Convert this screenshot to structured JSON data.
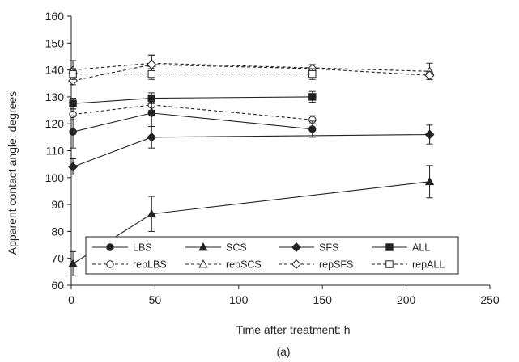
{
  "chart_data": {
    "type": "line",
    "xlabel": "Time after treatment: h",
    "ylabel": "Apparent contact angle: degrees",
    "caption": "(a)",
    "xlim": [
      0,
      250
    ],
    "ylim": [
      60,
      160
    ],
    "xticks": [
      "0",
      "50",
      "100",
      "150",
      "200",
      "250"
    ],
    "yticks": [
      "60",
      "70",
      "80",
      "90",
      "100",
      "110",
      "120",
      "130",
      "140",
      "150",
      "160"
    ],
    "grid": false,
    "legend_position": "bottom-left",
    "series": [
      {
        "name": "LBS",
        "marker": "circle",
        "fill": "filled",
        "dash": "solid",
        "x": [
          1,
          48,
          144
        ],
        "y": [
          117,
          124,
          118
        ],
        "err": [
          6,
          5,
          3
        ]
      },
      {
        "name": "SCS",
        "marker": "triangle",
        "fill": "filled",
        "dash": "solid",
        "x": [
          1,
          48,
          214
        ],
        "y": [
          68,
          86.5,
          98.5
        ],
        "err": [
          4.5,
          6.5,
          6
        ]
      },
      {
        "name": "SFS",
        "marker": "diamond",
        "fill": "filled",
        "dash": "solid",
        "x": [
          1,
          48,
          214
        ],
        "y": [
          104,
          115,
          116
        ],
        "err": [
          3,
          4,
          3.5
        ]
      },
      {
        "name": "ALL",
        "marker": "square",
        "fill": "filled",
        "dash": "solid",
        "x": [
          1,
          48,
          144
        ],
        "y": [
          127.5,
          129.5,
          130
        ],
        "err": [
          2,
          2,
          2
        ]
      },
      {
        "name": "repLBS",
        "marker": "circle",
        "fill": "open",
        "dash": "dashed",
        "x": [
          1,
          48,
          144
        ],
        "y": [
          123.5,
          127,
          121.5
        ],
        "err": [
          2,
          2,
          1.5
        ]
      },
      {
        "name": "repSCS",
        "marker": "triangle",
        "fill": "open",
        "dash": "dashed",
        "x": [
          1,
          48,
          214
        ],
        "y": [
          140,
          142.5,
          139.5
        ],
        "err": [
          3.5,
          3,
          3
        ]
      },
      {
        "name": "repSFS",
        "marker": "diamond",
        "fill": "open",
        "dash": "dashed",
        "x": [
          1,
          48,
          144,
          214
        ],
        "y": [
          136,
          142,
          140.5,
          138
        ],
        "err": [
          1.5,
          3.5,
          1.5,
          1.5
        ]
      },
      {
        "name": "repALL",
        "marker": "square",
        "fill": "open",
        "dash": "dashed",
        "x": [
          1,
          48,
          144
        ],
        "y": [
          138.5,
          138.5,
          138.5
        ],
        "err": [
          2,
          2,
          2
        ]
      }
    ]
  },
  "colors": {
    "ink": "#222222",
    "background": "#ffffff"
  }
}
